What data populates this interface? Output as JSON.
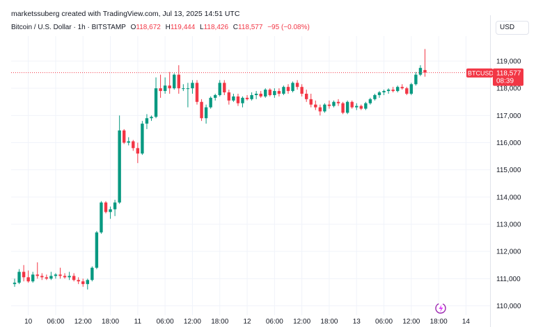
{
  "header": {
    "author": "marketssuberg",
    "created_text": "created with TradingView.com, Jul 13, 2025 14:51 UTC"
  },
  "legend": {
    "symbol": "Bitcoin / U.S. Dollar · 1h · BITSTAMP",
    "o_label": "O",
    "o_value": "118,672",
    "h_label": "H",
    "h_value": "119,444",
    "l_label": "L",
    "l_value": "118,426",
    "c_label": "C",
    "c_value": "118,577",
    "change": "−95 (−0.08%)"
  },
  "currency_button": "USD",
  "price_tag": {
    "ticker": "BTCUSD",
    "price": "118,577",
    "countdown": "08:39"
  },
  "colors": {
    "up": "#089981",
    "down": "#f23645",
    "grid": "#f0f3fa",
    "text": "#131722"
  },
  "chart_data": {
    "type": "candlestick",
    "title": "Bitcoin / U.S. Dollar · 1h · BITSTAMP",
    "interval": "1h",
    "ylim": [
      109800,
      120200
    ],
    "y_ticks": [
      110000,
      111000,
      112000,
      113000,
      114000,
      115000,
      116000,
      117000,
      118000,
      119000
    ],
    "y_tick_labels": [
      "110,000",
      "111,000",
      "112,000",
      "113,000",
      "114,000",
      "115,000",
      "116,000",
      "117,000",
      "118,000",
      "119,000"
    ],
    "x_tick_labels": [
      {
        "label": "10",
        "bar": 3
      },
      {
        "label": "06:00",
        "bar": 9
      },
      {
        "label": "12:00",
        "bar": 15
      },
      {
        "label": "18:00",
        "bar": 21
      },
      {
        "label": "11",
        "bar": 27
      },
      {
        "label": "06:00",
        "bar": 33
      },
      {
        "label": "12:00",
        "bar": 39
      },
      {
        "label": "18:00",
        "bar": 45
      },
      {
        "label": "12",
        "bar": 51
      },
      {
        "label": "06:00",
        "bar": 57
      },
      {
        "label": "12:00",
        "bar": 63
      },
      {
        "label": "18:00",
        "bar": 69
      },
      {
        "label": "13",
        "bar": 75
      },
      {
        "label": "06:00",
        "bar": 81
      },
      {
        "label": "12:00",
        "bar": 87
      },
      {
        "label": "18:00",
        "bar": 93
      },
      {
        "label": "14",
        "bar": 99
      }
    ],
    "last_price": 118577,
    "candles": [
      {
        "o": 110800,
        "h": 111000,
        "l": 110700,
        "c": 110850
      },
      {
        "o": 110850,
        "h": 111350,
        "l": 110800,
        "c": 111250
      },
      {
        "o": 111250,
        "h": 111500,
        "l": 110900,
        "c": 111050
      },
      {
        "o": 111050,
        "h": 111300,
        "l": 110850,
        "c": 110900
      },
      {
        "o": 110900,
        "h": 111250,
        "l": 110850,
        "c": 111150
      },
      {
        "o": 111150,
        "h": 111600,
        "l": 111000,
        "c": 111100
      },
      {
        "o": 111100,
        "h": 111200,
        "l": 110950,
        "c": 111050
      },
      {
        "o": 111050,
        "h": 111150,
        "l": 110950,
        "c": 111000
      },
      {
        "o": 111000,
        "h": 111250,
        "l": 110950,
        "c": 111100
      },
      {
        "o": 111100,
        "h": 111200,
        "l": 111000,
        "c": 111150
      },
      {
        "o": 111150,
        "h": 111400,
        "l": 111000,
        "c": 111100
      },
      {
        "o": 111100,
        "h": 111200,
        "l": 111000,
        "c": 111050
      },
      {
        "o": 111050,
        "h": 111250,
        "l": 110950,
        "c": 111100
      },
      {
        "o": 111100,
        "h": 111200,
        "l": 110900,
        "c": 110950
      },
      {
        "o": 110950,
        "h": 111050,
        "l": 110800,
        "c": 110900
      },
      {
        "o": 110900,
        "h": 111000,
        "l": 110700,
        "c": 110800
      },
      {
        "o": 110800,
        "h": 111000,
        "l": 110600,
        "c": 110950
      },
      {
        "o": 110950,
        "h": 111450,
        "l": 110900,
        "c": 111400
      },
      {
        "o": 111400,
        "h": 112750,
        "l": 111350,
        "c": 112700
      },
      {
        "o": 112700,
        "h": 113850,
        "l": 112650,
        "c": 113800
      },
      {
        "o": 113800,
        "h": 113850,
        "l": 113400,
        "c": 113450
      },
      {
        "o": 113450,
        "h": 113650,
        "l": 113200,
        "c": 113550
      },
      {
        "o": 113550,
        "h": 113900,
        "l": 113300,
        "c": 113800
      },
      {
        "o": 113800,
        "h": 117000,
        "l": 113750,
        "c": 116450
      },
      {
        "o": 116450,
        "h": 116500,
        "l": 115950,
        "c": 116000
      },
      {
        "o": 116000,
        "h": 116200,
        "l": 115900,
        "c": 116050
      },
      {
        "o": 116050,
        "h": 116100,
        "l": 115700,
        "c": 115800
      },
      {
        "o": 115800,
        "h": 116000,
        "l": 115250,
        "c": 115600
      },
      {
        "o": 115600,
        "h": 116800,
        "l": 115550,
        "c": 116700
      },
      {
        "o": 116700,
        "h": 117050,
        "l": 116500,
        "c": 116900
      },
      {
        "o": 116900,
        "h": 117000,
        "l": 116800,
        "c": 116950
      },
      {
        "o": 116950,
        "h": 118400,
        "l": 116900,
        "c": 118000
      },
      {
        "o": 118000,
        "h": 118500,
        "l": 117650,
        "c": 117900
      },
      {
        "o": 117900,
        "h": 118400,
        "l": 117800,
        "c": 118100
      },
      {
        "o": 118100,
        "h": 118600,
        "l": 117800,
        "c": 118000
      },
      {
        "o": 118000,
        "h": 118550,
        "l": 117950,
        "c": 118500
      },
      {
        "o": 118500,
        "h": 118850,
        "l": 117800,
        "c": 118000
      },
      {
        "o": 118000,
        "h": 118150,
        "l": 117900,
        "c": 118000
      },
      {
        "o": 118000,
        "h": 118200,
        "l": 117300,
        "c": 118000
      },
      {
        "o": 118000,
        "h": 118300,
        "l": 117800,
        "c": 118200
      },
      {
        "o": 118200,
        "h": 118300,
        "l": 117400,
        "c": 117500
      },
      {
        "o": 117500,
        "h": 117600,
        "l": 116800,
        "c": 116900
      },
      {
        "o": 116900,
        "h": 117400,
        "l": 116700,
        "c": 117300
      },
      {
        "o": 117300,
        "h": 117700,
        "l": 117250,
        "c": 117650
      },
      {
        "o": 117650,
        "h": 117800,
        "l": 117550,
        "c": 117750
      },
      {
        "o": 117750,
        "h": 118300,
        "l": 117700,
        "c": 118200
      },
      {
        "o": 118200,
        "h": 118300,
        "l": 117750,
        "c": 117850
      },
      {
        "o": 117850,
        "h": 117950,
        "l": 117400,
        "c": 117550
      },
      {
        "o": 117550,
        "h": 117800,
        "l": 117500,
        "c": 117700
      },
      {
        "o": 117700,
        "h": 117800,
        "l": 117350,
        "c": 117450
      },
      {
        "o": 117450,
        "h": 117700,
        "l": 117300,
        "c": 117650
      },
      {
        "o": 117650,
        "h": 117750,
        "l": 117550,
        "c": 117600
      },
      {
        "o": 117600,
        "h": 117850,
        "l": 117550,
        "c": 117750
      },
      {
        "o": 117750,
        "h": 117900,
        "l": 117600,
        "c": 117800
      },
      {
        "o": 117800,
        "h": 117900,
        "l": 117650,
        "c": 117700
      },
      {
        "o": 117700,
        "h": 118000,
        "l": 117650,
        "c": 117950
      },
      {
        "o": 117950,
        "h": 118000,
        "l": 117700,
        "c": 117750
      },
      {
        "o": 117750,
        "h": 118000,
        "l": 117650,
        "c": 117900
      },
      {
        "o": 117900,
        "h": 118000,
        "l": 117700,
        "c": 117800
      },
      {
        "o": 117800,
        "h": 118100,
        "l": 117750,
        "c": 118050
      },
      {
        "o": 118050,
        "h": 118150,
        "l": 117800,
        "c": 117900
      },
      {
        "o": 117900,
        "h": 118250,
        "l": 117850,
        "c": 118200
      },
      {
        "o": 118200,
        "h": 118300,
        "l": 117950,
        "c": 118050
      },
      {
        "o": 118050,
        "h": 118150,
        "l": 117700,
        "c": 117800
      },
      {
        "o": 117800,
        "h": 117950,
        "l": 117500,
        "c": 117600
      },
      {
        "o": 117600,
        "h": 117800,
        "l": 117300,
        "c": 117400
      },
      {
        "o": 117400,
        "h": 117550,
        "l": 117200,
        "c": 117300
      },
      {
        "o": 117300,
        "h": 117400,
        "l": 117000,
        "c": 117150
      },
      {
        "o": 117150,
        "h": 117450,
        "l": 117100,
        "c": 117400
      },
      {
        "o": 117400,
        "h": 117550,
        "l": 117250,
        "c": 117350
      },
      {
        "o": 117350,
        "h": 117550,
        "l": 117300,
        "c": 117500
      },
      {
        "o": 117500,
        "h": 117600,
        "l": 117350,
        "c": 117450
      },
      {
        "o": 117450,
        "h": 117500,
        "l": 117050,
        "c": 117100
      },
      {
        "o": 117100,
        "h": 117550,
        "l": 117050,
        "c": 117500
      },
      {
        "o": 117500,
        "h": 117550,
        "l": 117250,
        "c": 117300
      },
      {
        "o": 117300,
        "h": 117450,
        "l": 117200,
        "c": 117350
      },
      {
        "o": 117350,
        "h": 117400,
        "l": 117200,
        "c": 117250
      },
      {
        "o": 117250,
        "h": 117500,
        "l": 117200,
        "c": 117450
      },
      {
        "o": 117450,
        "h": 117650,
        "l": 117400,
        "c": 117600
      },
      {
        "o": 117600,
        "h": 117800,
        "l": 117550,
        "c": 117750
      },
      {
        "o": 117750,
        "h": 117900,
        "l": 117650,
        "c": 117850
      },
      {
        "o": 117850,
        "h": 117950,
        "l": 117750,
        "c": 117900
      },
      {
        "o": 117900,
        "h": 118000,
        "l": 117800,
        "c": 117950
      },
      {
        "o": 117950,
        "h": 118050,
        "l": 117850,
        "c": 117900
      },
      {
        "o": 117900,
        "h": 118100,
        "l": 117850,
        "c": 118050
      },
      {
        "o": 118050,
        "h": 118150,
        "l": 117950,
        "c": 118000
      },
      {
        "o": 118000,
        "h": 118050,
        "l": 117750,
        "c": 117800
      },
      {
        "o": 117800,
        "h": 118200,
        "l": 117750,
        "c": 118150
      },
      {
        "o": 118150,
        "h": 118600,
        "l": 118100,
        "c": 118500
      },
      {
        "o": 118500,
        "h": 118850,
        "l": 118450,
        "c": 118750
      },
      {
        "o": 118672,
        "h": 119444,
        "l": 118426,
        "c": 118577
      }
    ]
  }
}
